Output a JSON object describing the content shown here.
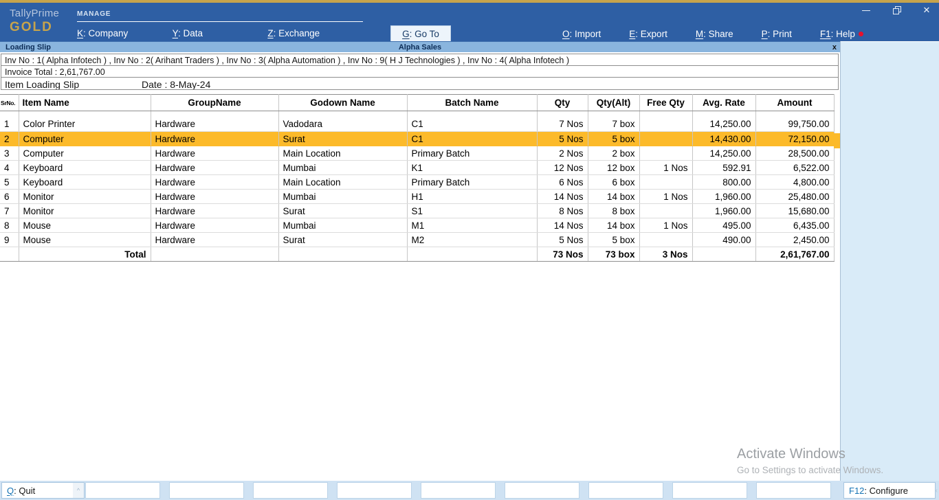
{
  "titlebar": {
    "product": "TallyPrime",
    "edition": "GOLD",
    "section": "MANAGE",
    "menus": [
      {
        "key": "K",
        "label": "Company"
      },
      {
        "key": "Y",
        "label": "Data"
      },
      {
        "key": "Z",
        "label": "Exchange"
      }
    ],
    "goto": {
      "key": "G",
      "label": "Go To"
    },
    "right_menus": [
      {
        "key": "O",
        "label": "Import"
      },
      {
        "key": "E",
        "label": "Export"
      },
      {
        "key": "M",
        "label": "Share"
      },
      {
        "key": "P",
        "label": "Print"
      },
      {
        "key": "F1",
        "label": "Help",
        "alert_dot": true
      }
    ]
  },
  "report_bar": {
    "left": "Loading Slip",
    "center": "Alpha Sales",
    "close_glyph": "x"
  },
  "info": {
    "invoices_line": "Inv No : 1( Alpha Infotech ) , Inv No : 2( Arihant Traders ) , Inv No : 3( Alpha Automation ) , Inv No : 9( H J Technologies ) , Inv No : 4( Alpha Infotech )",
    "invoice_total_line": "Invoice Total : 2,61,767.00",
    "report_title": "Item Loading Slip",
    "date_line": "Date : 8-May-24"
  },
  "table": {
    "columns": [
      "SrNo.",
      "Item Name",
      "GroupName",
      "Godown Name",
      "Batch Name",
      "Qty",
      "Qty(Alt)",
      "Free Qty",
      "Avg. Rate",
      "Amount"
    ],
    "rows": [
      [
        "1",
        "Color Printer",
        "Hardware",
        "Vadodara",
        "C1",
        "7 Nos",
        "7 box",
        "",
        "14,250.00",
        "99,750.00"
      ],
      [
        "2",
        "Computer",
        "Hardware",
        "Surat",
        "C1",
        "5 Nos",
        "5 box",
        "",
        "14,430.00",
        "72,150.00"
      ],
      [
        "3",
        "Computer",
        "Hardware",
        "Main Location",
        "Primary Batch",
        "2 Nos",
        "2 box",
        "",
        "14,250.00",
        "28,500.00"
      ],
      [
        "4",
        "Keyboard",
        "Hardware",
        "Mumbai",
        "K1",
        "12 Nos",
        "12 box",
        "1 Nos",
        "592.91",
        "6,522.00"
      ],
      [
        "5",
        "Keyboard",
        "Hardware",
        "Main Location",
        "Primary Batch",
        "6 Nos",
        "6 box",
        "",
        "800.00",
        "4,800.00"
      ],
      [
        "6",
        "Monitor",
        "Hardware",
        "Mumbai",
        "H1",
        "14 Nos",
        "14 box",
        "1 Nos",
        "1,960.00",
        "25,480.00"
      ],
      [
        "7",
        "Monitor",
        "Hardware",
        "Surat",
        "S1",
        "8 Nos",
        "8 box",
        "",
        "1,960.00",
        "15,680.00"
      ],
      [
        "8",
        "Mouse",
        "Hardware",
        "Mumbai",
        "M1",
        "14 Nos",
        "14 box",
        "1 Nos",
        "495.00",
        "6,435.00"
      ],
      [
        "9",
        "Mouse",
        "Hardware",
        "Surat",
        "M2",
        "5 Nos",
        "5 box",
        "",
        "490.00",
        "2,450.00"
      ]
    ],
    "selected_row_index": 1,
    "total": {
      "label": "Total",
      "qty": "73 Nos",
      "qty_alt": "73 box",
      "free_qty": "3 Nos",
      "amount": "2,61,767.00"
    }
  },
  "watermark": {
    "line1": "Activate Windows",
    "line2": "Go to Settings to activate Windows."
  },
  "bottombar": {
    "quit": {
      "key": "Q",
      "label": "Quit"
    },
    "configure": {
      "key": "F12",
      "label": "Configure"
    },
    "empty_button_count": 9
  },
  "icons": {
    "quit_expand": "^",
    "panel_chevron": "‹"
  },
  "colors": {
    "titlebar_blue": "#2e5fa4",
    "gold": "#c7a44c",
    "report_bar_blue": "#8ab5de",
    "selected_row": "#fcba2a",
    "panel_blue": "#d9ebf8",
    "bottom_bar": "#cfe2f3",
    "key_blue": "#1673b4",
    "help_dot_red": "#e8112d"
  }
}
